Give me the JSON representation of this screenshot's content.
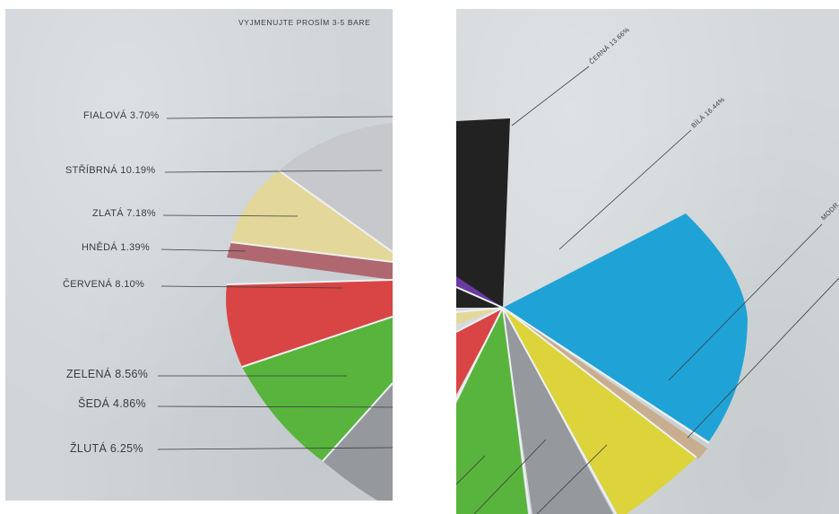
{
  "left_panel": {
    "header": "VYJMENUJTE PROSÍM 3-5 BARE",
    "labels": [
      {
        "key": "fialova",
        "text": "FIALOVÁ 3.70%"
      },
      {
        "key": "stribrna",
        "text": "STŘÍBRNÁ 10.19%"
      },
      {
        "key": "zlata",
        "text": "ZLATÁ 7.18%"
      },
      {
        "key": "hneda",
        "text": "HNĚDÁ 1.39%"
      },
      {
        "key": "cervena",
        "text": "ČERVENÁ 8.10%"
      },
      {
        "key": "zelena",
        "text": "ZELENÁ 8.56%"
      },
      {
        "key": "seda",
        "text": "ŠEDÁ 4.86%"
      },
      {
        "key": "zluta",
        "text": "ŽLUTÁ 6.25%"
      }
    ]
  },
  "right_panel": {
    "labels": [
      {
        "key": "cerna",
        "text": "ČERNÁ 13.66%"
      },
      {
        "key": "bila",
        "text": "BÍLÁ 16.44%"
      },
      {
        "key": "modra",
        "text": "MODR"
      }
    ]
  },
  "colors": {
    "paper": "#cfd5d9",
    "silver": "#c6c8cb",
    "gold": "#e4d79a",
    "brown": "#b06870",
    "red": "#d94545",
    "green": "#58b43c",
    "gray": "#95999d",
    "black": "#222222",
    "blue": "#1fa3d6",
    "yellow": "#dcd43a",
    "tan": "#c8ae8f",
    "purple": "#6a3aa0"
  }
}
